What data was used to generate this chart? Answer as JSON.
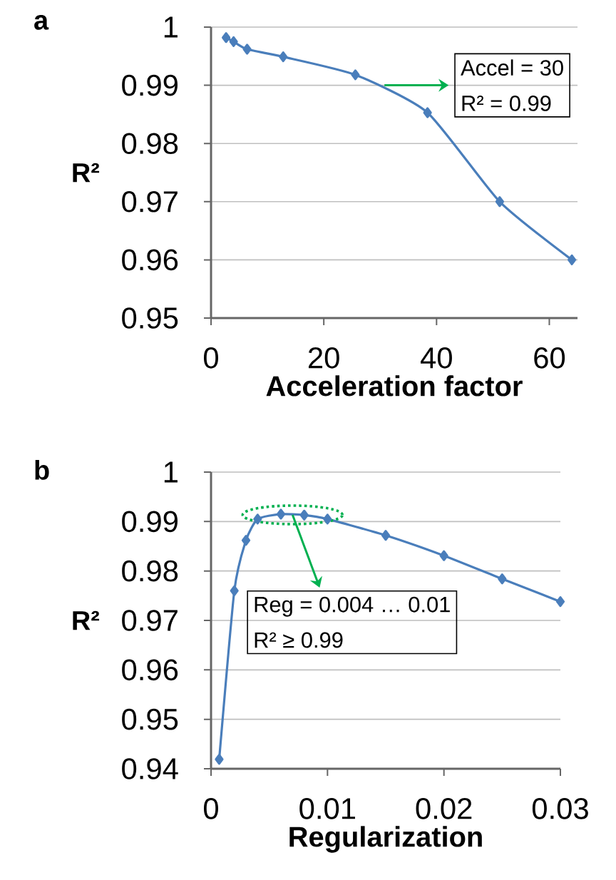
{
  "chart_data": [
    {
      "type": "line",
      "title": "a",
      "xlabel": "Acceleration factor",
      "ylabel": "R²",
      "x": [
        2.67,
        4,
        6.4,
        12.8,
        25.6,
        38.4,
        51.2,
        64
      ],
      "series": [
        {
          "color": "#4a7ebb",
          "values": [
            0.9982,
            0.9975,
            0.9962,
            0.9949,
            0.9918,
            0.9853,
            0.97,
            0.96
          ]
        }
      ],
      "xlim": [
        0,
        65
      ],
      "ylim": [
        0.95,
        1
      ],
      "xticks": [
        0,
        20,
        40,
        60
      ],
      "yticks": [
        0.95,
        0.96,
        0.97,
        0.98,
        0.99,
        1
      ],
      "grid": "y",
      "marker": "diamond",
      "annotations": [
        {
          "text": "Accel = 30",
          "x": 30,
          "y": 0.99
        },
        "R² = 0.99"
      ]
    },
    {
      "type": "line",
      "title": "b",
      "xlabel": "Regularization",
      "ylabel": "R²",
      "x": [
        0.0007,
        0.002,
        0.003,
        0.004,
        0.006,
        0.008,
        0.01,
        0.015,
        0.02,
        0.025,
        0.03
      ],
      "series": [
        {
          "color": "#4a7ebb",
          "values": [
            0.9419,
            0.976,
            0.9862,
            0.9905,
            0.9915,
            0.9913,
            0.9905,
            0.9872,
            0.9831,
            0.9784,
            0.9738
          ]
        }
      ],
      "xlim": [
        0,
        0.03
      ],
      "ylim": [
        0.94,
        1
      ],
      "xticks": [
        0,
        0.01,
        0.02,
        0.03
      ],
      "yticks": [
        0.94,
        0.95,
        0.96,
        0.97,
        0.98,
        0.99,
        1
      ],
      "grid": "y",
      "marker": "diamond",
      "annotations": [
        {
          "text": "Reg = 0.004 … 0.01",
          "x": 0.007,
          "y": 0.99135
        },
        "R² ≥ 0.99"
      ]
    }
  ]
}
